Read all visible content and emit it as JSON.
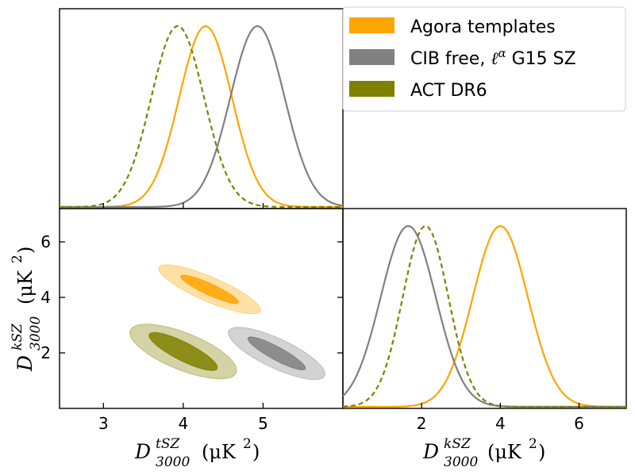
{
  "chart_data": {
    "type": "corner",
    "legend": {
      "placement": "top-right",
      "entries": [
        {
          "label": "Agora templates",
          "color": "#FFA500"
        },
        {
          "label": "CIB free, ℓ^α G15 SZ",
          "label_main": "CIB free, ",
          "label_ell": "ℓ",
          "label_alpha": "α",
          "label_tail": " G15 SZ",
          "color": "#808080"
        },
        {
          "label": "ACT DR6",
          "color": "#808000"
        }
      ]
    },
    "axes": {
      "tsz": {
        "label": "D",
        "sup": "tSZ",
        "sub": "3000",
        "unit": "(μK",
        "unit_pow": "2",
        "unit_close": ")",
        "range": [
          2.45,
          6.0
        ],
        "ticks": [
          3,
          4,
          5
        ]
      },
      "ksz": {
        "label": "D",
        "sup": "kSZ",
        "sub": "3000",
        "unit": "(μK",
        "unit_pow": "2",
        "unit_close": ")",
        "range": [
          0,
          7.2
        ],
        "ticks_y": [
          2,
          4,
          6
        ],
        "ticks_x": [
          2,
          4,
          6
        ]
      }
    },
    "series": [
      {
        "name": "Agora templates",
        "color": "#FFA500",
        "line_style": "solid",
        "tsz": {
          "mean": 4.28,
          "sigma": 0.33
        },
        "ksz": {
          "mean": 4.0,
          "sigma": 0.7
        },
        "ellipse": {
          "tsz_center": 4.33,
          "ksz_center": 4.29,
          "major_axis_slope": -1.47,
          "semi_major_68": 0.61,
          "semi_minor_68": 0.13,
          "semi_major_95": 1.05,
          "semi_minor_95": 0.29
        }
      },
      {
        "name": "CIB free, ℓ^α G15 SZ",
        "color": "#808080",
        "line_style": "solid",
        "tsz": {
          "mean": 4.93,
          "sigma": 0.34
        },
        "ksz": {
          "mean": 1.66,
          "sigma": 0.7
        },
        "ellipse": {
          "tsz_center": 5.17,
          "ksz_center": 1.98,
          "major_axis_slope": -1.74,
          "semi_major_68": 0.68,
          "semi_minor_68": 0.14,
          "semi_major_95": 1.07,
          "semi_minor_95": 0.33
        }
      },
      {
        "name": "ACT DR6",
        "color": "#808000",
        "line_style": "dashed",
        "tsz": {
          "mean": 3.93,
          "sigma": 0.33
        },
        "ksz": {
          "mean": 2.1,
          "sigma": 0.58
        },
        "ellipse": {
          "tsz_center": 4.0,
          "ksz_center": 2.05,
          "major_axis_slope": -1.73,
          "semi_major_68": 0.78,
          "semi_minor_68": 0.2,
          "semi_major_95": 1.11,
          "semi_minor_95": 0.43
        }
      }
    ]
  }
}
